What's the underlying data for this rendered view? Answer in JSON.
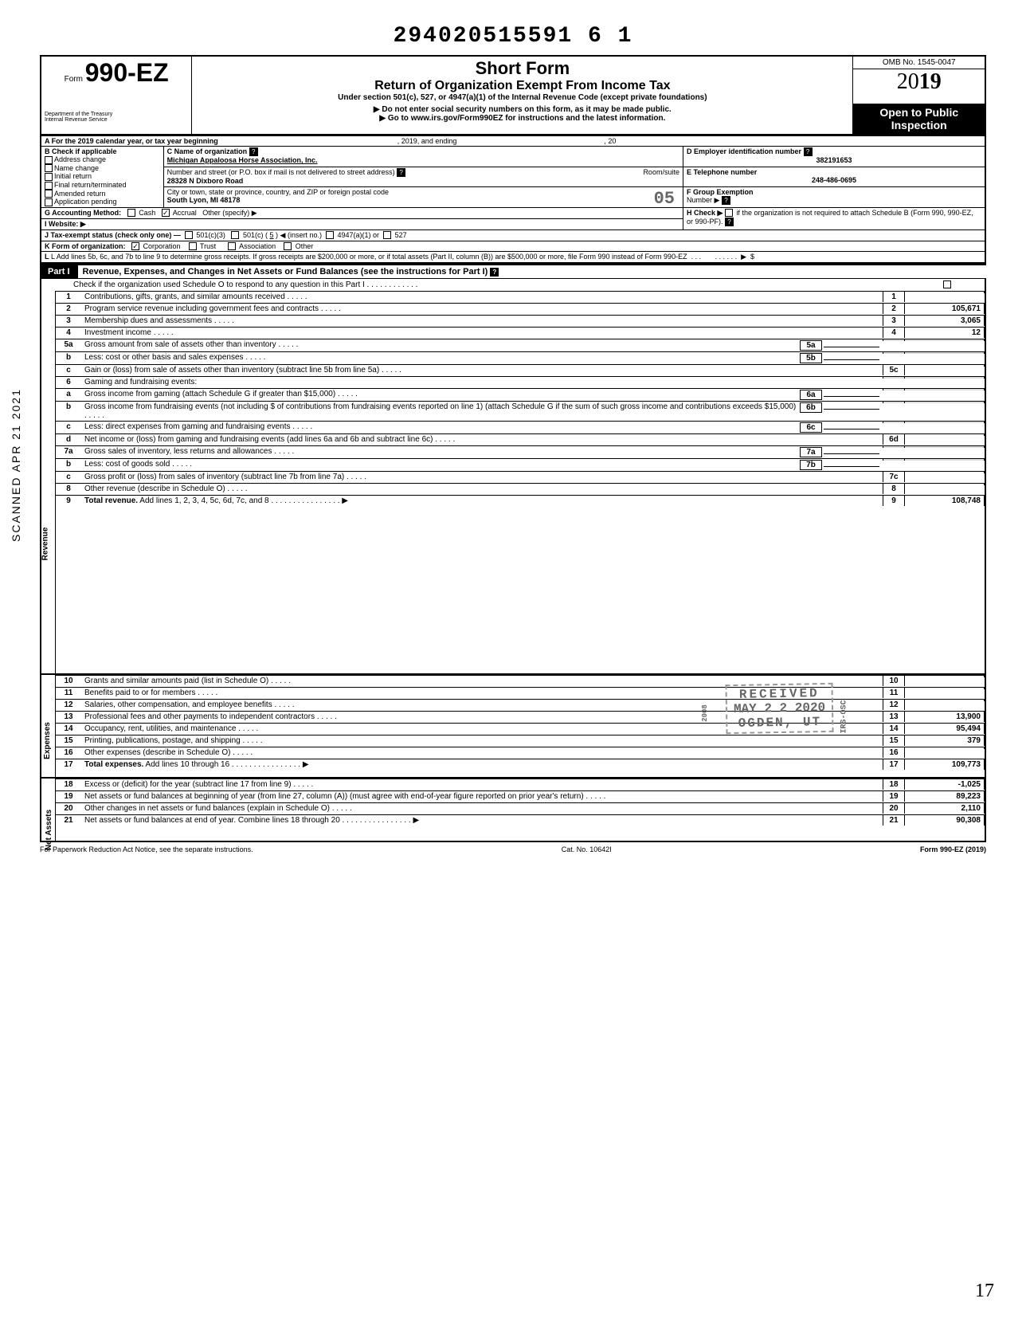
{
  "barcode_number": "294020515591 6 1",
  "form": {
    "prefix": "Form",
    "number": "990-EZ",
    "short": "Short Form",
    "title": "Return of Organization Exempt From Income Tax",
    "subtitle": "Under section 501(c), 527, or 4947(a)(1) of the Internal Revenue Code (except private foundations)",
    "note1": "▶ Do not enter social security numbers on this form, as it may be made public.",
    "note2": "▶ Go to www.irs.gov/Form990EZ for instructions and the latest information.",
    "dept1": "Department of the Treasury",
    "dept2": "Internal Revenue Service",
    "omb": "OMB No. 1545-0047",
    "year_a": "20",
    "year_b": "19",
    "open1": "Open to Public",
    "open2": "Inspection"
  },
  "line_a": "A For the 2019 calendar year, or tax year beginning",
  "line_a_mid": ", 2019, and ending",
  "line_a_end": ", 20",
  "b_label": "B Check if applicable",
  "b_items": [
    "Address change",
    "Name change",
    "Initial return",
    "Final return/terminated",
    "Amended return",
    "Application pending"
  ],
  "c_label": "C Name of organization",
  "c_name": "Michigan Appaloosa Horse Association, Inc.",
  "c_addr_label": "Number and street (or P.O. box if mail is not delivered to street address)",
  "c_room_label": "Room/suite",
  "c_addr": "28328 N Dixboro Road",
  "c_city_label": "City or town, state or province, country, and ZIP or foreign postal code",
  "c_city": "South Lyon, MI 48178",
  "d_label": "D Employer identification number",
  "d_value": "382191653",
  "e_label": "E Telephone number",
  "e_value": "248-486-0695",
  "f_label": "F Group Exemption",
  "f_label2": "Number ▶",
  "stamp_05": "05",
  "g_label": "G Accounting Method:",
  "g_cash": "Cash",
  "g_accrual": "Accrual",
  "g_other": "Other (specify) ▶",
  "h_label": "H Check ▶",
  "h_text": "if the organization is not required to attach Schedule B (Form 990, 990-EZ, or 990-PF).",
  "i_label": "I Website: ▶",
  "j_label": "J Tax-exempt status (check only one) —",
  "j_1": "501(c)(3)",
  "j_2a": "501(c) (",
  "j_2num": "5",
  "j_2b": ") ◀ (insert no.)",
  "j_3": "4947(a)(1) or",
  "j_4": "527",
  "k_label": "K Form of organization:",
  "k_1": "Corporation",
  "k_2": "Trust",
  "k_3": "Association",
  "k_4": "Other",
  "l_text": "L Add lines 5b, 6c, and 7b to line 9 to determine gross receipts. If gross receipts are $200,000 or more, or if total assets (Part II, column (B)) are $500,000 or more, file Form 990 instead of Form 990-EZ",
  "l_arrow": "▶",
  "l_dollar": "$",
  "part1_tab": "Part I",
  "part1_title": "Revenue, Expenses, and Changes in Net Assets or Fund Balances (see the instructions for Part I)",
  "part1_check": "Check if the organization used Schedule O to respond to any question in this Part I",
  "vertical_labels": {
    "revenue": "Revenue",
    "expenses": "Expenses",
    "netassets": "Net Assets"
  },
  "sidebar_stamp": "SCANNED APR 21 2021",
  "lines": [
    {
      "n": "1",
      "d": "Contributions, gifts, grants, and similar amounts received",
      "bn": "1",
      "v": ""
    },
    {
      "n": "2",
      "d": "Program service revenue including government fees and contracts",
      "bn": "2",
      "v": "105,671"
    },
    {
      "n": "3",
      "d": "Membership dues and assessments",
      "bn": "3",
      "v": "3,065"
    },
    {
      "n": "4",
      "d": "Investment income",
      "bn": "4",
      "v": "12"
    },
    {
      "n": "5a",
      "d": "Gross amount from sale of assets other than inventory",
      "ib": "5a"
    },
    {
      "n": "b",
      "d": "Less: cost or other basis and sales expenses",
      "ib": "5b"
    },
    {
      "n": "c",
      "d": "Gain or (loss) from sale of assets other than inventory (subtract line 5b from line 5a)",
      "bn": "5c",
      "v": ""
    },
    {
      "n": "6",
      "d": "Gaming and fundraising events:"
    },
    {
      "n": "a",
      "d": "Gross income from gaming (attach Schedule G if greater than $15,000)",
      "ib": "6a"
    },
    {
      "n": "b",
      "d": "Gross income from fundraising events (not including  $                of contributions from fundraising events reported on line 1) (attach Schedule G if the sum of such gross income and contributions exceeds $15,000)",
      "ib": "6b"
    },
    {
      "n": "c",
      "d": "Less: direct expenses from gaming and fundraising events",
      "ib": "6c"
    },
    {
      "n": "d",
      "d": "Net income or (loss) from gaming and fundraising events (add lines 6a and 6b and subtract line 6c)",
      "bn": "6d",
      "v": ""
    },
    {
      "n": "7a",
      "d": "Gross sales of inventory, less returns and allowances",
      "ib": "7a"
    },
    {
      "n": "b",
      "d": "Less: cost of goods sold",
      "ib": "7b"
    },
    {
      "n": "c",
      "d": "Gross profit or (loss) from sales of inventory (subtract line 7b from line 7a)",
      "bn": "7c",
      "v": ""
    },
    {
      "n": "8",
      "d": "Other revenue (describe in Schedule O)",
      "bn": "8",
      "v": ""
    },
    {
      "n": "9",
      "d": "Total revenue. Add lines 1, 2, 3, 4, 5c, 6d, 7c, and 8",
      "bn": "9",
      "v": "108,748",
      "arrow": true,
      "bold": true
    },
    {
      "n": "10",
      "d": "Grants and similar amounts paid (list in Schedule O)",
      "bn": "10",
      "v": ""
    },
    {
      "n": "11",
      "d": "Benefits paid to or for members",
      "bn": "11",
      "v": ""
    },
    {
      "n": "12",
      "d": "Salaries, other compensation, and employee benefits",
      "bn": "12",
      "v": ""
    },
    {
      "n": "13",
      "d": "Professional fees and other payments to independent contractors",
      "bn": "13",
      "v": "13,900"
    },
    {
      "n": "14",
      "d": "Occupancy, rent, utilities, and maintenance",
      "bn": "14",
      "v": "95,494"
    },
    {
      "n": "15",
      "d": "Printing, publications, postage, and shipping",
      "bn": "15",
      "v": "379"
    },
    {
      "n": "16",
      "d": "Other expenses (describe in Schedule O)",
      "bn": "16",
      "v": ""
    },
    {
      "n": "17",
      "d": "Total expenses. Add lines 10 through 16",
      "bn": "17",
      "v": "109,773",
      "arrow": true,
      "bold": true
    },
    {
      "n": "18",
      "d": "Excess or (deficit) for the year (subtract line 17 from line 9)",
      "bn": "18",
      "v": "-1,025"
    },
    {
      "n": "19",
      "d": "Net assets or fund balances at beginning of year (from line 27, column (A)) (must agree with end-of-year figure reported on prior year's return)",
      "bn": "19",
      "v": "89,223"
    },
    {
      "n": "20",
      "d": "Other changes in net assets or fund balances (explain in Schedule O)",
      "bn": "20",
      "v": "2,110"
    },
    {
      "n": "21",
      "d": "Net assets or fund balances at end of year. Combine lines 18 through 20",
      "bn": "21",
      "v": "90,308",
      "arrow": true
    }
  ],
  "received_stamp": {
    "line1": "RECEIVED",
    "line2": "MAY 2 2 2020",
    "line3": "OGDEN, UT",
    "side": "IRS-OSC",
    "side2": "2008"
  },
  "footer": {
    "left": "For Paperwork Reduction Act Notice, see the separate instructions.",
    "mid": "Cat. No. 10642I",
    "right": "Form 990-EZ (2019)"
  },
  "hand_mark": "17",
  "colors": {
    "shade": "#dddddd",
    "black": "#000000"
  }
}
